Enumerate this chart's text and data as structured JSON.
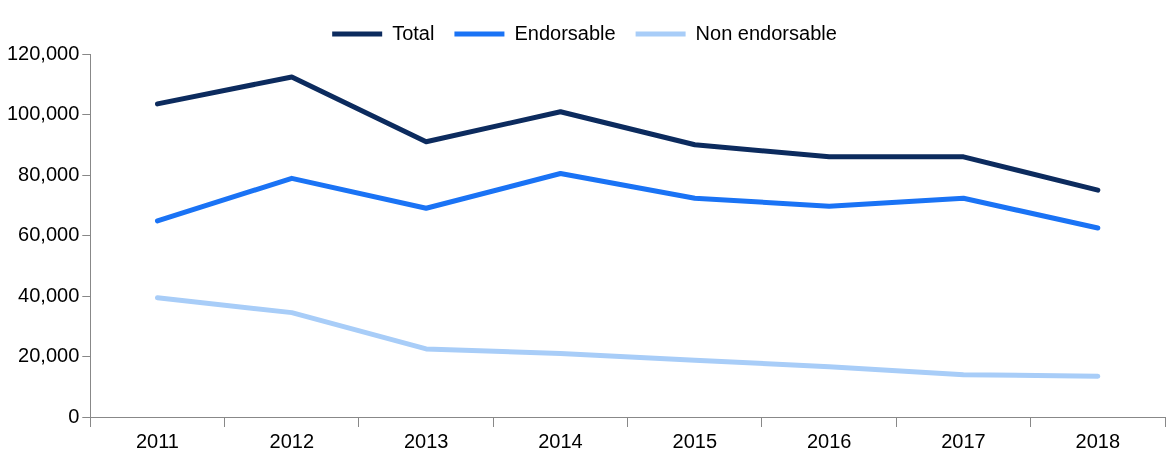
{
  "chart_data": {
    "type": "line",
    "categories": [
      "2011",
      "2012",
      "2013",
      "2014",
      "2015",
      "2016",
      "2017",
      "2018"
    ],
    "series": [
      {
        "name": "Total",
        "color": "#0c2b5e",
        "values": [
          103500,
          112400,
          91000,
          100900,
          90000,
          86000,
          86000,
          75000
        ]
      },
      {
        "name": "Endorsable",
        "color": "#1a73f5",
        "values": [
          64800,
          78900,
          69000,
          80500,
          72300,
          69700,
          72300,
          62500
        ]
      },
      {
        "name": "Non endorsable",
        "color": "#a8cdf8",
        "values": [
          39400,
          34500,
          22500,
          21000,
          18800,
          16600,
          14000,
          13500
        ]
      }
    ],
    "ylim": [
      0,
      120000
    ],
    "yticks": [
      {
        "value": 0,
        "label": "0"
      },
      {
        "value": 20000,
        "label": "20,000"
      },
      {
        "value": 40000,
        "label": "40,000"
      },
      {
        "value": 60000,
        "label": "60,000"
      },
      {
        "value": 80000,
        "label": "80,000"
      },
      {
        "value": 100000,
        "label": "100,000"
      },
      {
        "value": 120000,
        "label": "120,000"
      }
    ],
    "grid": false,
    "legend": "top",
    "marker": "none",
    "line_style": "solid"
  }
}
